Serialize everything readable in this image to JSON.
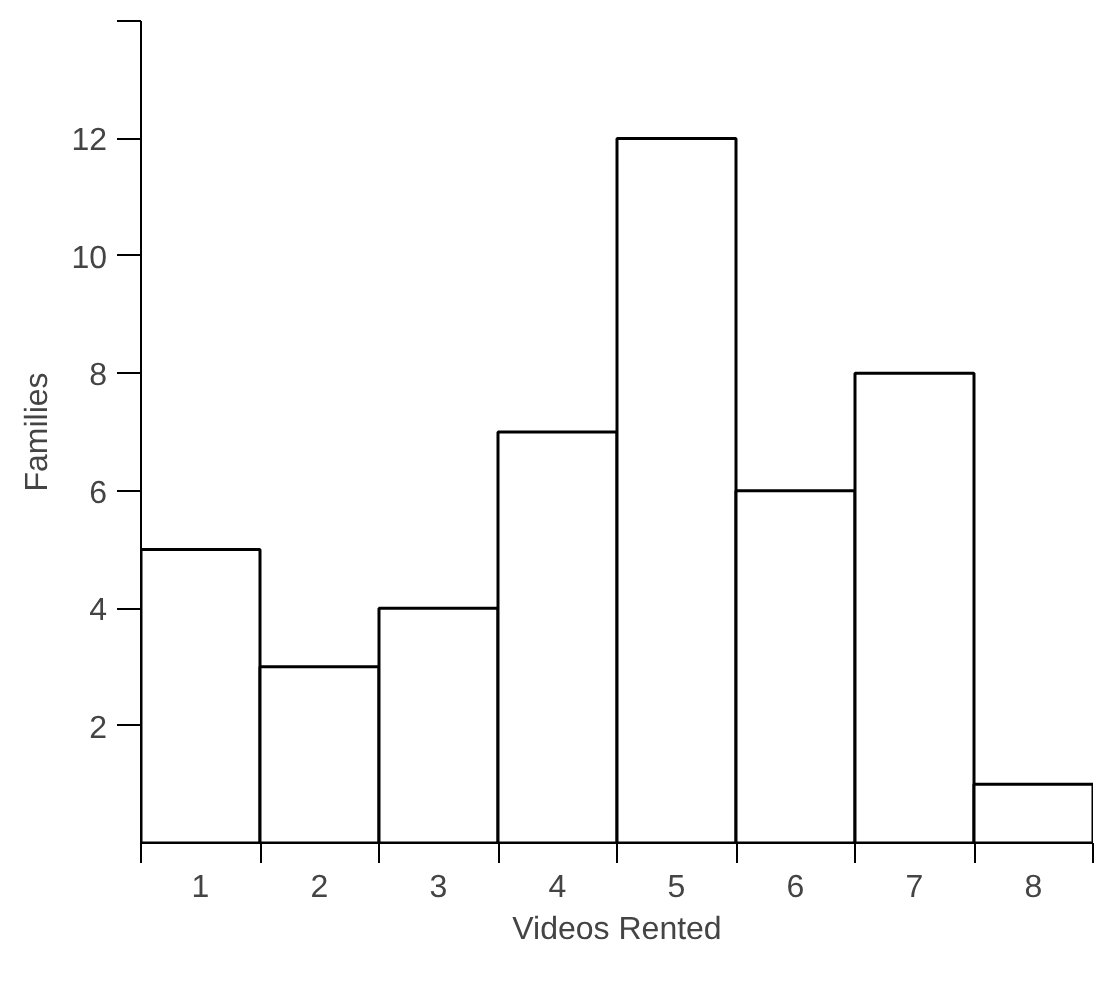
{
  "chart_data": {
    "type": "bar",
    "xlabel": "Videos Rented",
    "ylabel": "Families",
    "categories": [
      "1",
      "2",
      "3",
      "4",
      "5",
      "6",
      "7",
      "8"
    ],
    "values": [
      5,
      3,
      4,
      7,
      12,
      6,
      8,
      1
    ],
    "color": "#ffffff",
    "ylim": [
      0,
      14
    ],
    "yticks": [
      2,
      4,
      6,
      8,
      10,
      12,
      {
        "value": 14,
        "label": null
      }
    ],
    "grid": false
  }
}
